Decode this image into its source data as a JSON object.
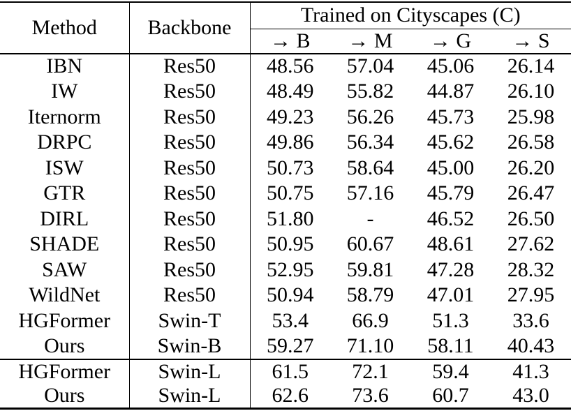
{
  "colors": {
    "text": "#000000",
    "background": "#ffffff",
    "rule": "#000000"
  },
  "table": {
    "header": {
      "method": "Method",
      "backbone": "Backbone",
      "group": "Trained on Cityscapes (C)",
      "sub": {
        "b": "→ B",
        "m": "→ M",
        "g": "→ G",
        "s": "→ S"
      }
    },
    "rows": [
      {
        "method": "IBN",
        "backbone": "Res50",
        "b": "48.56",
        "m": "57.04",
        "g": "45.06",
        "s": "26.14",
        "bold": false
      },
      {
        "method": "IW",
        "backbone": "Res50",
        "b": "48.49",
        "m": "55.82",
        "g": "44.87",
        "s": "26.10",
        "bold": false
      },
      {
        "method": "Iternorm",
        "backbone": "Res50",
        "b": "49.23",
        "m": "56.26",
        "g": "45.73",
        "s": "25.98",
        "bold": false
      },
      {
        "method": "DRPC",
        "backbone": "Res50",
        "b": "49.86",
        "m": "56.34",
        "g": "45.62",
        "s": "26.58",
        "bold": false
      },
      {
        "method": "ISW",
        "backbone": "Res50",
        "b": "50.73",
        "m": "58.64",
        "g": "45.00",
        "s": "26.20",
        "bold": false
      },
      {
        "method": "GTR",
        "backbone": "Res50",
        "b": "50.75",
        "m": "57.16",
        "g": "45.79",
        "s": "26.47",
        "bold": false
      },
      {
        "method": "DIRL",
        "backbone": "Res50",
        "b": "51.80",
        "m": "-",
        "g": "46.52",
        "s": "26.50",
        "bold": false
      },
      {
        "method": "SHADE",
        "backbone": "Res50",
        "b": "50.95",
        "m": "60.67",
        "g": "48.61",
        "s": "27.62",
        "bold": false
      },
      {
        "method": "SAW",
        "backbone": "Res50",
        "b": "52.95",
        "m": "59.81",
        "g": "47.28",
        "s": "28.32",
        "bold": false
      },
      {
        "method": "WildNet",
        "backbone": "Res50",
        "b": "50.94",
        "m": "58.79",
        "g": "47.01",
        "s": "27.95",
        "bold": false
      },
      {
        "method": "HGFormer",
        "backbone": "Swin-T",
        "b": "53.4",
        "m": "66.9",
        "g": "51.3",
        "s": "33.6",
        "bold": false
      },
      {
        "method": "Ours",
        "backbone": "Swin-B",
        "b": "59.27",
        "m": "71.10",
        "g": "58.11",
        "s": "40.43",
        "bold": true
      },
      {
        "method": "HGFormer",
        "backbone": "Swin-L",
        "b": "61.5",
        "m": "72.1",
        "g": "59.4",
        "s": "41.3",
        "bold": false
      },
      {
        "method": "Ours",
        "backbone": "Swin-L",
        "b": "62.6",
        "m": "73.6",
        "g": "60.7",
        "s": "43.0",
        "bold": true
      }
    ]
  }
}
